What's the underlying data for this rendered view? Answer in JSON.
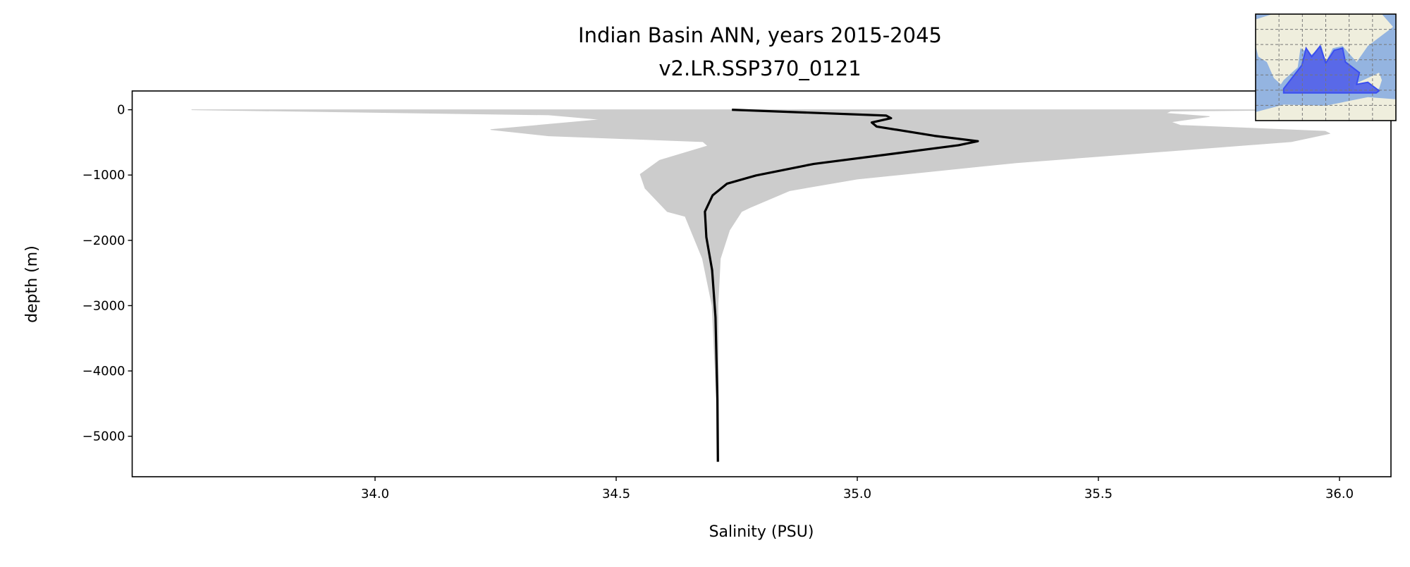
{
  "chart_data": {
    "type": "line",
    "title": "Indian Basin ANN, years 2015-2045",
    "subtitle": "v2.LR.SSP370_0121",
    "xlabel": "Salinity (PSU)",
    "ylabel": "depth (m)",
    "xlim": [
      33.5,
      36.1
    ],
    "ylim": [
      -5620,
      290
    ],
    "xticks": [
      34.0,
      34.5,
      35.0,
      35.5,
      36.0
    ],
    "xtick_labels": [
      "34.0",
      "34.5",
      "35.0",
      "35.5",
      "36.0"
    ],
    "yticks": [
      0,
      -1000,
      -2000,
      -3000,
      -4000,
      -5000
    ],
    "ytick_labels": [
      "0",
      "−1000",
      "−2000",
      "−3000",
      "−4000",
      "−5000"
    ],
    "grid": false,
    "series": [
      {
        "role": "mean",
        "color": "#000000",
        "points": [
          [
            34.74,
            0
          ],
          [
            35.06,
            -90
          ],
          [
            35.07,
            -130
          ],
          [
            35.03,
            -196
          ],
          [
            35.04,
            -257
          ],
          [
            35.16,
            -400
          ],
          [
            35.25,
            -482
          ],
          [
            35.21,
            -543
          ],
          [
            35.08,
            -668
          ],
          [
            34.91,
            -829
          ],
          [
            34.79,
            -1007
          ],
          [
            34.73,
            -1132
          ],
          [
            34.7,
            -1311
          ],
          [
            34.684,
            -1560
          ],
          [
            34.687,
            -1950
          ],
          [
            34.699,
            -2456
          ],
          [
            34.706,
            -3180
          ],
          [
            34.71,
            -4440
          ],
          [
            34.711,
            -5390
          ]
        ]
      }
    ],
    "envelope": {
      "role": "min-max range",
      "color": "#cccccc",
      "min": [
        [
          33.62,
          0
        ],
        [
          34.36,
          -79
        ],
        [
          34.47,
          -150
        ],
        [
          34.24,
          -304
        ],
        [
          34.36,
          -400
        ],
        [
          34.68,
          -489
        ],
        [
          34.69,
          -554
        ],
        [
          34.59,
          -775
        ],
        [
          34.55,
          -989
        ],
        [
          34.56,
          -1204
        ],
        [
          34.606,
          -1560
        ],
        [
          34.643,
          -1632
        ],
        [
          34.679,
          -2280
        ],
        [
          34.699,
          -3000
        ],
        [
          34.708,
          -4440
        ],
        [
          34.709,
          -5390
        ]
      ],
      "max": [
        [
          36.0,
          0
        ],
        [
          35.65,
          -20
        ],
        [
          35.64,
          -54
        ],
        [
          35.73,
          -104
        ],
        [
          35.65,
          -186
        ],
        [
          35.67,
          -239
        ],
        [
          35.97,
          -329
        ],
        [
          35.98,
          -364
        ],
        [
          35.9,
          -489
        ],
        [
          35.33,
          -811
        ],
        [
          35.0,
          -1061
        ],
        [
          34.86,
          -1239
        ],
        [
          34.78,
          -1489
        ],
        [
          34.76,
          -1560
        ],
        [
          34.735,
          -1846
        ],
        [
          34.716,
          -2280
        ],
        [
          34.711,
          -3000
        ],
        [
          34.712,
          -4440
        ],
        [
          34.713,
          -5390
        ]
      ]
    },
    "inset_map": {
      "ocean_color": "#94b4e0",
      "land_color": "#efeedd",
      "region_color": "#5565e8"
    }
  }
}
